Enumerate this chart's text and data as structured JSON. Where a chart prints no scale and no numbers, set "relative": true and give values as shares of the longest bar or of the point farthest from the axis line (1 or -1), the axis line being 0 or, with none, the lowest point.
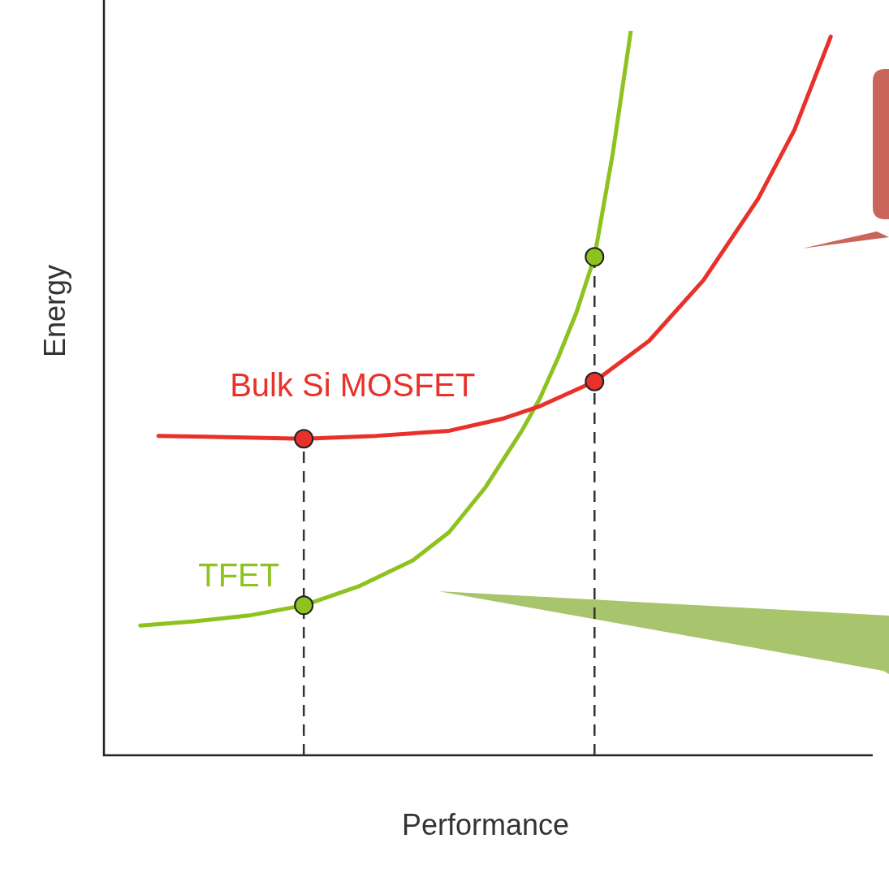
{
  "chart_data": {
    "type": "line",
    "xlabel": "Performance",
    "ylabel": "Energy",
    "relative": true,
    "grid": false,
    "legend": false,
    "tick_labels": false,
    "categories": [
      null,
      null,
      null,
      null,
      null,
      null,
      null,
      null,
      null,
      null,
      null,
      null,
      null,
      null,
      null,
      null,
      null,
      null,
      null,
      null,
      null,
      null,
      null,
      null,
      null,
      null,
      null,
      null,
      null,
      null,
      null,
      null,
      null,
      null,
      null,
      null,
      null,
      null,
      null,
      null,
      null,
      null,
      null
    ],
    "series": [
      {
        "name": "Bulk Si MOSFET",
        "color": "#e8312a",
        "marker": "none",
        "values": [
          null,
          null,
          null,
          0.441,
          null,
          null,
          null,
          null,
          null,
          null,
          null,
          0.437,
          null,
          null,
          null,
          0.441,
          null,
          null,
          null,
          0.448,
          null,
          null,
          0.465,
          null,
          0.482,
          null,
          null,
          0.516,
          null,
          null,
          0.572,
          null,
          null,
          0.656,
          null,
          null,
          0.768,
          null,
          0.863,
          null,
          0.992,
          null,
          null
        ]
      },
      {
        "name": "TFET",
        "color": "#8dc21f",
        "marker": "none",
        "values": [
          null,
          null,
          0.179,
          null,
          null,
          0.185,
          null,
          null,
          0.193,
          null,
          null,
          0.207,
          null,
          null,
          0.233,
          null,
          null,
          0.269,
          null,
          0.308,
          null,
          0.37,
          null,
          0.448,
          0.493,
          0.549,
          0.611,
          0.688,
          0.83,
          1.0,
          null,
          null,
          null,
          null,
          null,
          null,
          null,
          null,
          null,
          null,
          null,
          null,
          null
        ]
      }
    ]
  }
}
